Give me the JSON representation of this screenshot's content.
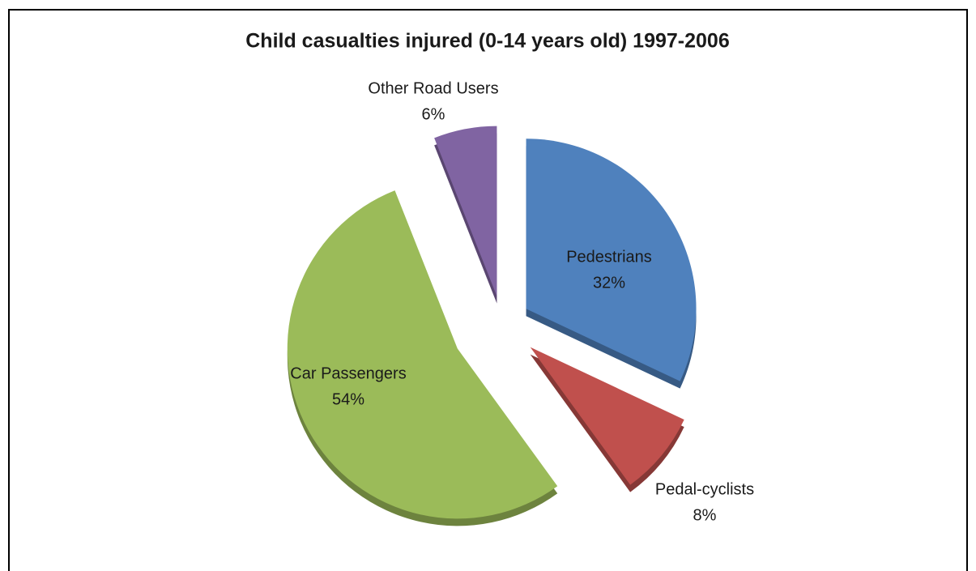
{
  "chart_data": {
    "type": "pie",
    "title": "Child casualties  injured (0-14 years old) 1997-2006",
    "categories": [
      "Pedestrians",
      "Pedal-cyclists",
      "Car Passengers",
      "Other Road Users"
    ],
    "values": [
      32,
      8,
      54,
      6
    ],
    "value_labels": [
      "32%",
      "8%",
      "54%",
      "6%"
    ],
    "colors": [
      "#4f81bd",
      "#c0504d",
      "#9bbb59",
      "#8064a2"
    ]
  }
}
